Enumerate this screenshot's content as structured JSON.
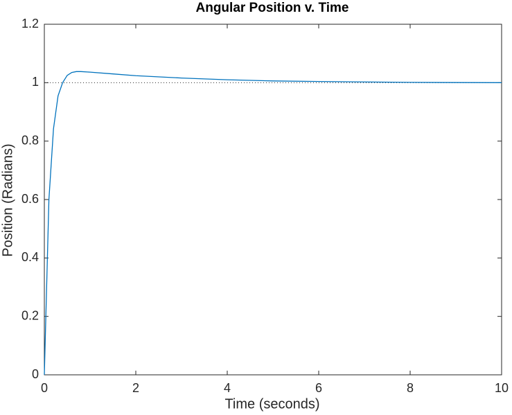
{
  "chart_data": {
    "type": "line",
    "title": "Angular Position v. Time",
    "x_label": "Time (seconds)",
    "y_label": "Position (Radians)",
    "x": [
      0,
      0.1,
      0.2,
      0.3,
      0.4,
      0.5,
      0.6,
      0.7,
      0.8,
      1,
      1.5,
      2,
      3,
      4,
      5,
      6,
      8,
      10
    ],
    "series": [
      {
        "name": "Position",
        "color": "#0072bd",
        "values": [
          0,
          0.6,
          0.842,
          0.955,
          1.0,
          1.025,
          1.035,
          1.038,
          1.038,
          1.036,
          1.03,
          1.024,
          1.016,
          1.01,
          1.006,
          1.004,
          1.001,
          1.0
        ]
      }
    ],
    "reference_line": 1,
    "xlim": [
      0,
      10
    ],
    "xticks": [
      0,
      2,
      4,
      6,
      8,
      10
    ],
    "ylim": [
      0,
      1.2
    ],
    "yticks": [
      0,
      0.2,
      0.4,
      0.6,
      0.8,
      1,
      1.2
    ],
    "grid": false
  }
}
